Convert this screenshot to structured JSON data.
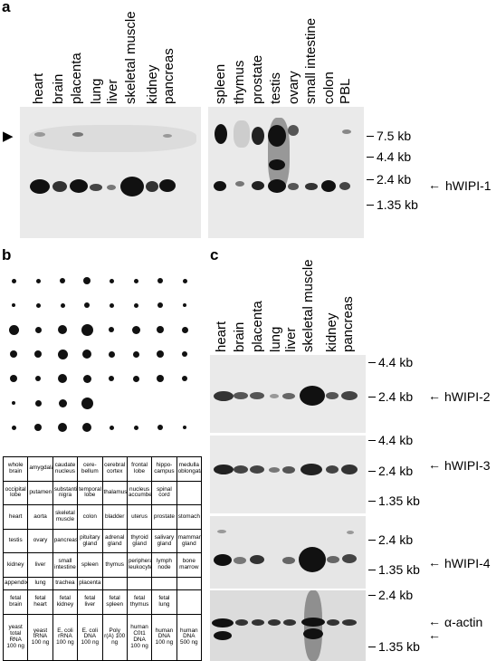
{
  "panels": {
    "a": "a",
    "b": "b",
    "c": "c"
  },
  "panel_a": {
    "lanes_left": [
      "heart",
      "brain",
      "placenta",
      "lung",
      "liver",
      "skeletal muscle",
      "kidney",
      "pancreas"
    ],
    "lanes_right": [
      "spleen",
      "thymus",
      "prostate",
      "testis",
      "ovary",
      "small intestine",
      "colon",
      "PBL"
    ],
    "markers": [
      "7.5 kb",
      "4.4 kb",
      "2.4 kb",
      "1.35 kb"
    ],
    "gene": "hWIPI-1"
  },
  "panel_b": {
    "grid": [
      [
        "whole brain",
        "amygdala",
        "caudate nucleus",
        "cere-bellum",
        "cerebral cortex",
        "frontal lobe",
        "hippo-campus",
        "medulla oblongata"
      ],
      [
        "occipital lobe",
        "putamen",
        "substantia nigra",
        "temporal lobe",
        "thalamus",
        "nucleus accumbens",
        "spinal cord",
        ""
      ],
      [
        "heart",
        "aorta",
        "skeletal muscle",
        "colon",
        "bladder",
        "uterus",
        "prostate",
        "stomach"
      ],
      [
        "testis",
        "ovary",
        "pancreas",
        "pituitary gland",
        "adrenal gland",
        "thyroid gland",
        "salivary gland",
        "mammary gland"
      ],
      [
        "kidney",
        "liver",
        "small intestine",
        "spleen",
        "thymus",
        "peripheral leukocyte",
        "lymph node",
        "bone marrow"
      ],
      [
        "appendix",
        "lung",
        "trachea",
        "placenta",
        "",
        "",
        "",
        ""
      ],
      [
        "fetal brain",
        "fetal heart",
        "fetal kidney",
        "fetal liver",
        "fetal spleen",
        "fetal thymus",
        "fetal lung",
        ""
      ],
      [
        "yeast total RNA 100 ng",
        "yeast tRNA 100 ng",
        "E. coli rRNA 100 ng",
        "E. coli DNA 100 ng",
        "Poly r(A) 100 ng",
        "human C0t1 DNA 100 ng",
        "human DNA 100 ng",
        "human DNA 500 ng"
      ]
    ]
  },
  "panel_c": {
    "lanes": [
      "heart",
      "brain",
      "placenta",
      "lung",
      "liver",
      "skeletal muscle",
      "kidney",
      "pancreas"
    ],
    "blots": [
      {
        "markers": [
          "4.4 kb",
          "2.4 kb"
        ],
        "gene": "hWIPI-2"
      },
      {
        "markers": [
          "4.4 kb",
          "2.4 kb",
          "1.35 kb"
        ],
        "gene": "hWIPI-3"
      },
      {
        "markers": [
          "2.4 kb",
          "1.35 kb"
        ],
        "gene": "hWIPI-4"
      },
      {
        "markers": [
          "2.4 kb",
          "1.35 kb"
        ],
        "gene": "α-actin"
      }
    ]
  }
}
